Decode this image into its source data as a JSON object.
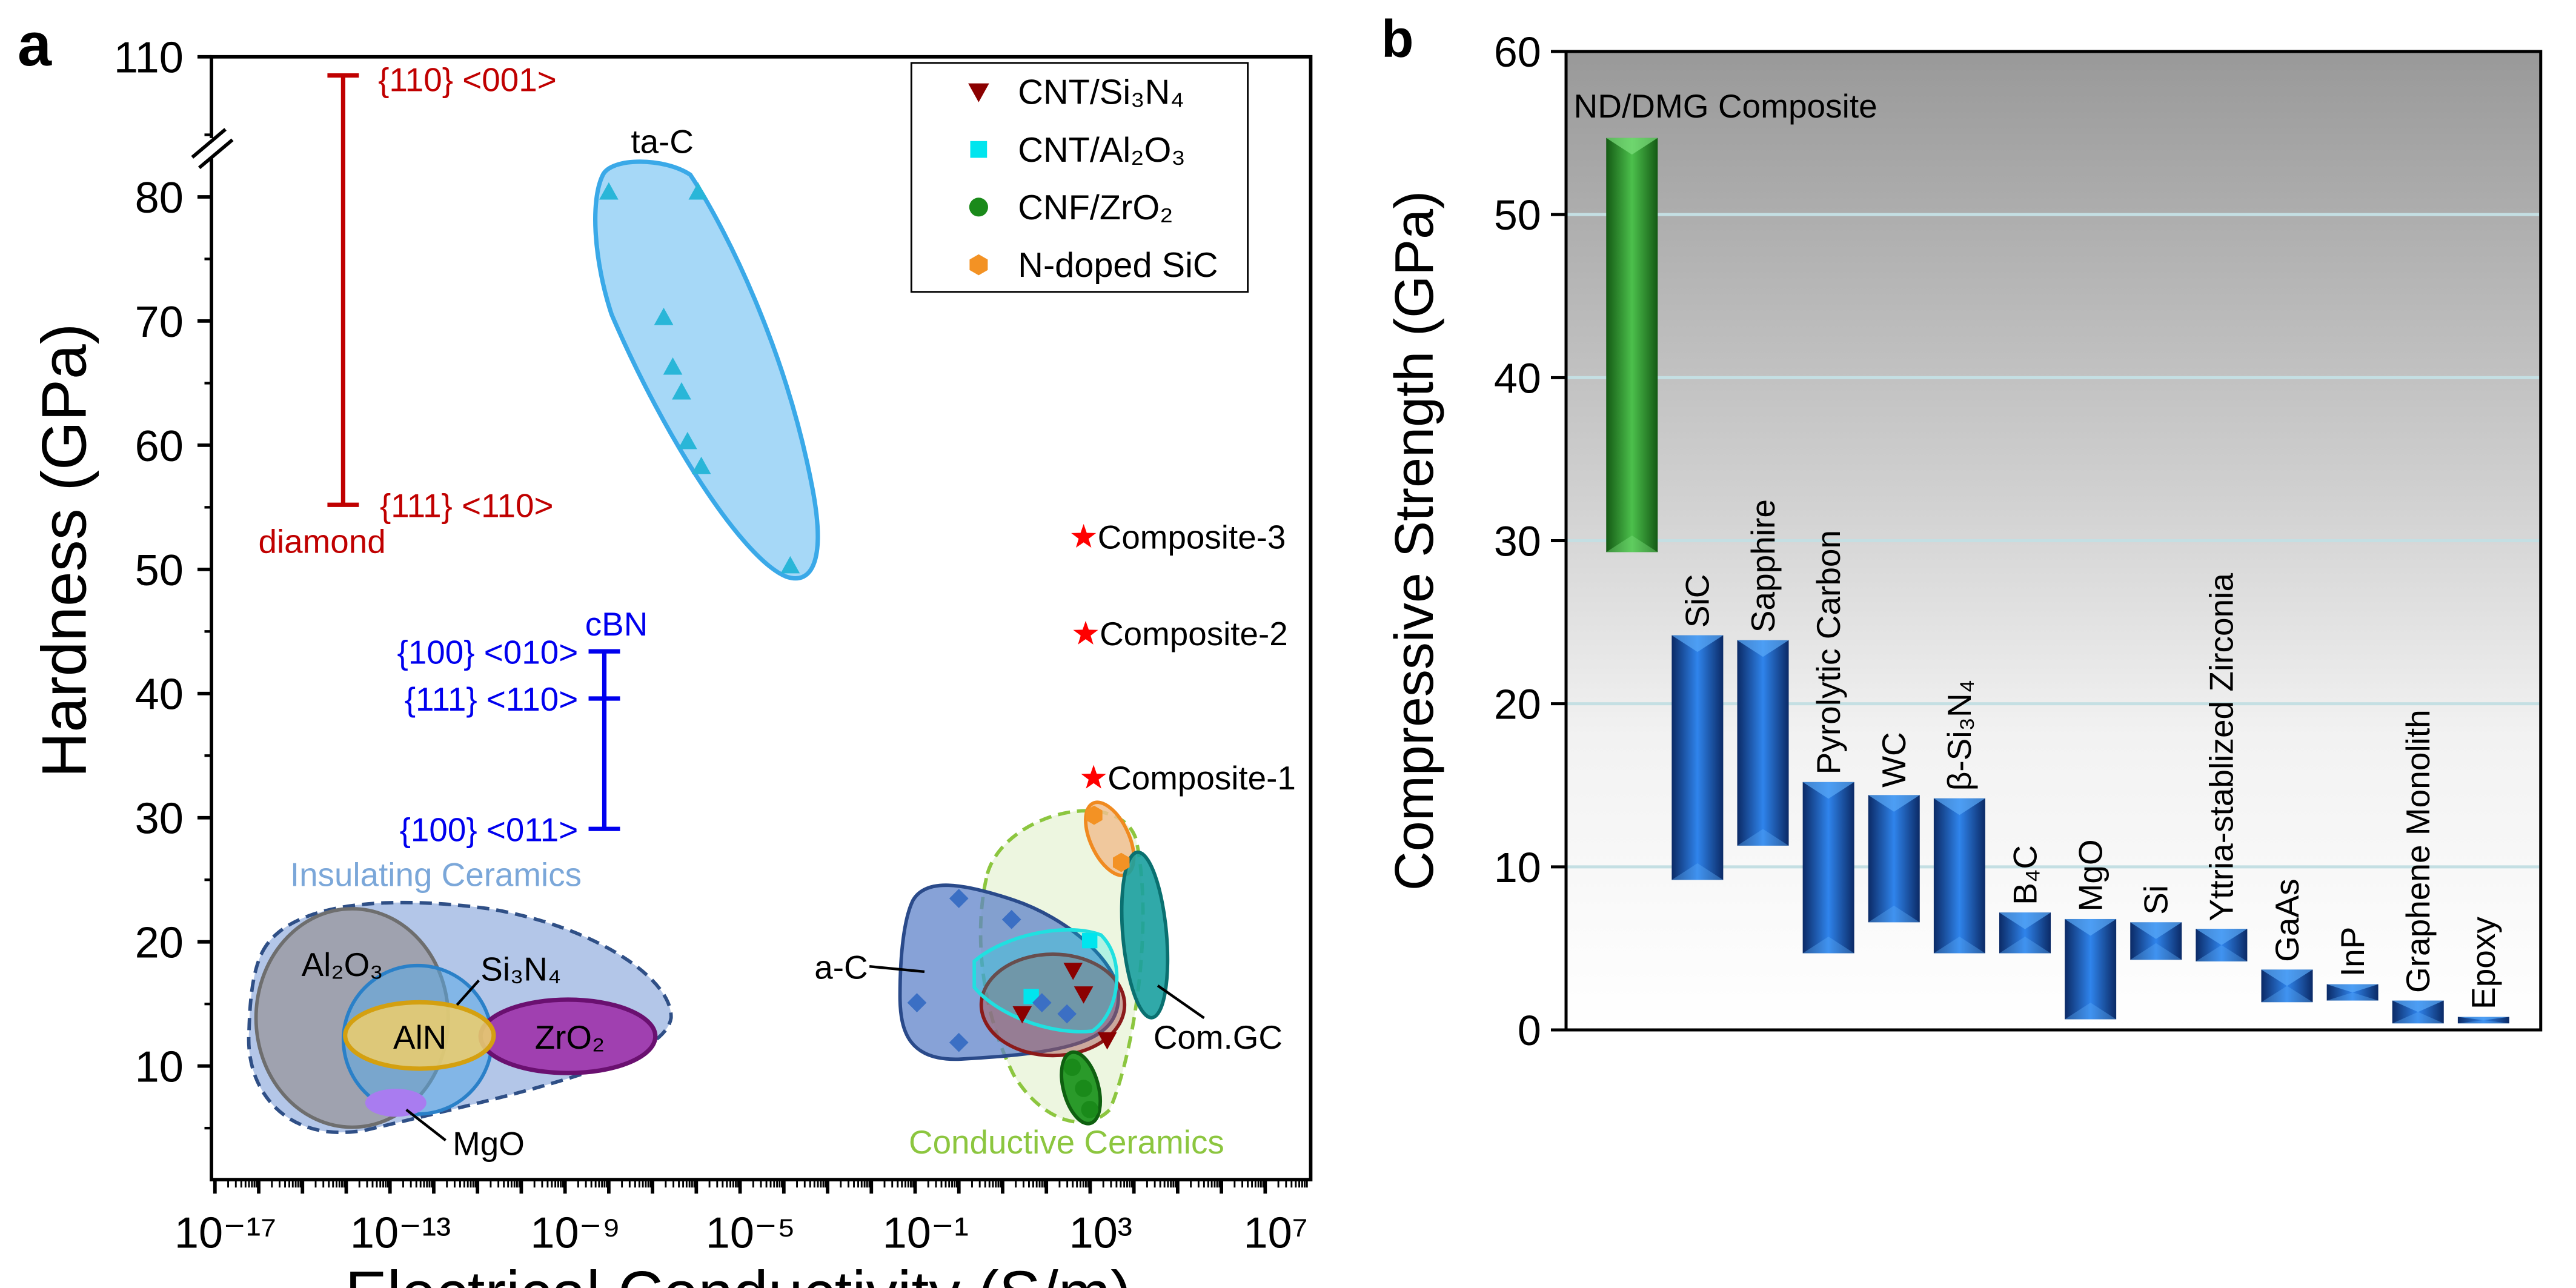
{
  "chart_data": [
    {
      "panel_label": "a",
      "type": "scatter",
      "xlabel": "Electrical Conductivity (S/m)",
      "ylabel": "Hardness (GPa)",
      "xscale": "log",
      "xlim": [
        7.9e-18,
        100000000.0
      ],
      "ylim": [
        1,
        110
      ],
      "y_axis_break": true,
      "xtick_labels": [
        {
          "v": -17,
          "t": "10⁻¹⁷"
        },
        {
          "v": -13,
          "t": "10⁻¹³"
        },
        {
          "v": -9,
          "t": "10⁻⁹"
        },
        {
          "v": -5,
          "t": "10⁻⁵"
        },
        {
          "v": -1,
          "t": "10⁻¹"
        },
        {
          "v": 3,
          "t": "10³"
        },
        {
          "v": 7,
          "t": "10⁷"
        }
      ],
      "ytick_labels": [
        {
          "v": 10,
          "t": "10"
        },
        {
          "v": 20,
          "t": "20"
        },
        {
          "v": 30,
          "t": "30"
        },
        {
          "v": 40,
          "t": "40"
        },
        {
          "v": 50,
          "t": "50"
        },
        {
          "v": 60,
          "t": "60"
        },
        {
          "v": 70,
          "t": "70"
        },
        {
          "v": 80,
          "t": "80"
        },
        {
          "v": 110,
          "t": "110"
        }
      ],
      "legend": {
        "position": "top-right",
        "entries": [
          {
            "name": "CNT/Si₃N₄",
            "marker": "triangle-down",
            "color": "#8b0000"
          },
          {
            "name": "CNT/Al₂O₃",
            "marker": "square",
            "color": "#00e5ee"
          },
          {
            "name": "CNF/ZrO₂",
            "marker": "circle",
            "color": "#1a8a1a"
          },
          {
            "name": "N-doped SiC",
            "marker": "hexagon",
            "color": "#f39224"
          }
        ]
      },
      "series": [
        {
          "name": "CNT/Si₃N₄",
          "marker": "triangle-down",
          "color": "#8b0000",
          "x": [
            407,
            708,
            28,
            2455
          ],
          "y": [
            17.7,
            15.8,
            14.2,
            12.1
          ]
        },
        {
          "name": "CNT/Al₂O₃",
          "marker": "square",
          "color": "#00e5ee",
          "x": [
            977,
            45
          ],
          "y": [
            20.1,
            15.6
          ]
        },
        {
          "name": "CNF/ZrO₂",
          "marker": "circle",
          "color": "#1a8a1a",
          "x": [
            389,
            708,
            977
          ],
          "y": [
            9.9,
            8.2,
            6.5
          ]
        },
        {
          "name": "N-doped SiC",
          "marker": "hexagon",
          "color": "#f39224",
          "x": [
            1230,
            5130
          ],
          "y": [
            30.2,
            26.4
          ]
        },
        {
          "marker": "triangle",
          "color": "#29b6d8",
          "x": [
            1e-08,
            1.1e-06,
            1.8e-07,
            2.9e-07,
            4.6e-07,
            6.3e-07,
            1.3e-06,
            0.00014
          ],
          "y": [
            80.4,
            80.4,
            70.3,
            66.3,
            64.3,
            60.3,
            58.3,
            50.3
          ]
        },
        {
          "marker": "diamond",
          "color": "#3b6fc4",
          "x": [
            1,
            16,
            0.11,
            1,
            79,
            295
          ],
          "y": [
            23.5,
            21.8,
            15.1,
            11.9,
            15.1,
            14.2
          ]
        }
      ],
      "stars": [
        {
          "label": "Composite-3",
          "x": 710,
          "y": 52.6,
          "color": "#ff0000"
        },
        {
          "label": "Composite-2",
          "x": 790,
          "y": 44.8,
          "color": "#ff0000"
        },
        {
          "label": "Composite-1",
          "x": 1200,
          "y": 33.2,
          "color": "#ff0000"
        }
      ],
      "ranges": {
        "diamond": {
          "label": "diamond",
          "x": 8.5e-15,
          "low": 55.2,
          "high": 104,
          "low_label": "{111} <110>",
          "high_label": "{110} <001>",
          "color": "#c00000"
        },
        "cbn": {
          "label": "cBN",
          "x": 7.9e-09,
          "values": [
            29.1,
            39.6,
            43.4
          ],
          "value_labels": [
            "{100} <011>",
            "{111} <110>",
            "{100} <010>"
          ],
          "color": "#0000ee"
        }
      },
      "region_labels": {
        "ta_c": "ta-C",
        "a_c": "a-C",
        "insulating": "Insulating Ceramics",
        "conductive": "Conductive Ceramics",
        "al2o3": "Al₂O₃",
        "si3n4": "Si₃N₄",
        "aln": "AlN",
        "zro2": "ZrO₂",
        "mgo": "MgO",
        "comgc": "Com.GC"
      },
      "colors": {
        "insulating": "#7ba7d9",
        "conductive": "#8cc63f"
      }
    },
    {
      "panel_label": "b",
      "type": "bar",
      "subtype": "floating-range",
      "ylabel": "Compressive Strength (GPa)",
      "xlabel": "",
      "ylim": [
        0,
        60
      ],
      "ytick_labels": [
        "0",
        "10",
        "20",
        "30",
        "40",
        "50",
        "60"
      ],
      "grid": true,
      "categories": [
        "ND/DMG Composite",
        "SiC",
        "Sapphire",
        "Pyrolytic Carbon",
        "WC",
        "β-Si₃N₄",
        "B₄C",
        "MgO",
        "Si",
        "Yttria-stablized Zirconia",
        "GaAs",
        "InP",
        "Graphene Monolith",
        "Epoxy"
      ],
      "low": [
        29.3,
        9.2,
        11.3,
        4.7,
        6.6,
        4.7,
        4.7,
        0.65,
        4.3,
        4.2,
        1.7,
        1.8,
        0.4,
        0.4
      ],
      "high": [
        54.7,
        24.2,
        23.9,
        15.2,
        14.4,
        14.2,
        7.2,
        6.8,
        6.6,
        6.2,
        3.7,
        2.8,
        1.8,
        0.8
      ],
      "colors": {
        "highlight": "#3cb043",
        "others": "#1f6fd6"
      }
    }
  ]
}
